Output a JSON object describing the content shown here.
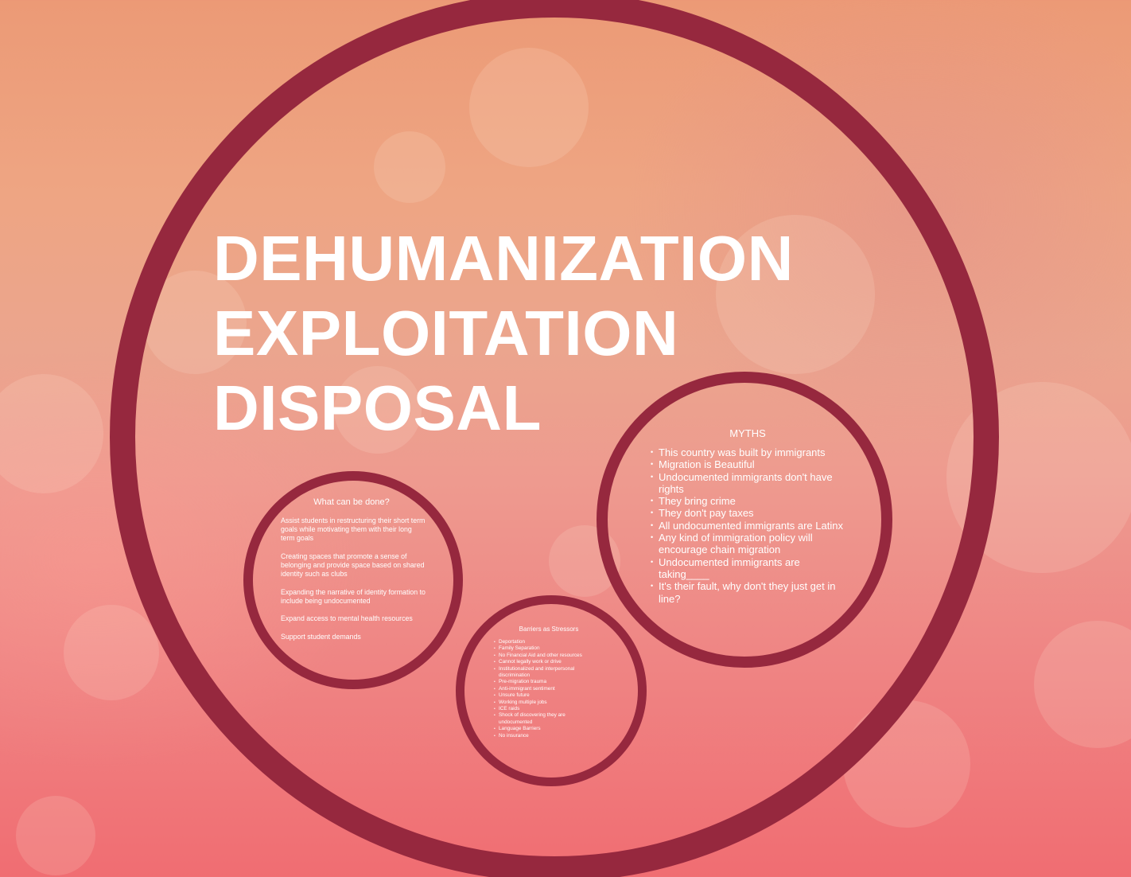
{
  "title_lines": [
    "DEHUMANIZATION",
    "EXPLOITATION",
    "DISPOSAL"
  ],
  "myths": {
    "heading": "MYTHS",
    "items": [
      "This country was built by immigrants",
      "Migration is Beautiful",
      "Undocumented immigrants don't have rights",
      "They bring crime",
      "They don't pay taxes",
      "All undocumented immigrants are Latinx",
      "Any kind of immigration policy will encourage chain migration",
      "Undocumented immigrants are taking____",
      "It's their fault, why don't they just get in line?"
    ]
  },
  "what_can_be_done": {
    "heading": "What can be done?",
    "paragraphs": [
      "Assist students in restructuring their short term goals while motivating them with their long term goals",
      "Creating spaces that promote a sense of belonging and provide space based on shared identity such as clubs",
      "Expanding the narrative of identity formation to include being undocumented",
      "Expand access to mental health resources",
      "Support student demands"
    ]
  },
  "barriers": {
    "heading": "Barriers as Stressors",
    "items": [
      "Deportation",
      "Family Separation",
      "No Financial Aid and other resources",
      "Cannot legally work or drive",
      "Institutionalized and interpersonal discrimination",
      "Pre-migration trauma",
      "Anti-immigrant sentiment",
      "Unsure future",
      "Working multiple jobs",
      "ICE raids",
      "Shock of discovering they are undocumented",
      "Language Barriers",
      "No insurance"
    ]
  },
  "colors": {
    "ring": "#96283e",
    "text": "#ffffff"
  }
}
